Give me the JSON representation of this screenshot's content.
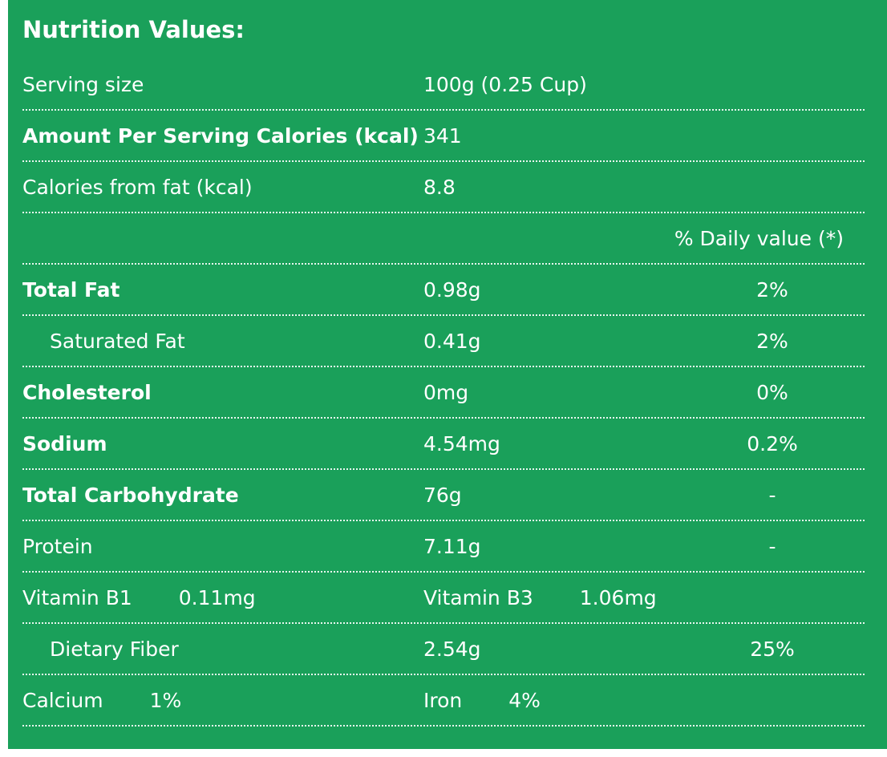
{
  "title": "Nutrition Values:",
  "colors": {
    "background": "#1aa05a",
    "text": "#ffffff",
    "divider": "#ffffff"
  },
  "serving": {
    "label": "Serving size",
    "value": "100g (0.25 Cup)"
  },
  "daily_value_header": "% Daily value (*)",
  "rows": [
    {
      "label": "Serving size",
      "value": "100g (0.25 Cup)",
      "percent": ""
    },
    {
      "label": "Amount Per Serving Calories (kcal)",
      "value": "341",
      "percent": ""
    },
    {
      "label": "Calories from fat (kcal)",
      "value": "8.8",
      "percent": ""
    },
    {
      "label": "Total Fat",
      "value": "0.98g",
      "percent": "2%"
    },
    {
      "label": "Saturated Fat",
      "value": "0.41g",
      "percent": "2%"
    },
    {
      "label": "Cholesterol",
      "value": "0mg",
      "percent": "0%"
    },
    {
      "label": "Sodium",
      "value": "4.54mg",
      "percent": "0.2%"
    },
    {
      "label": "Total Carbohydrate",
      "value": "76g",
      "percent": "-"
    },
    {
      "label": "Protein",
      "value": "7.11g",
      "percent": "-"
    },
    {
      "left_label": "Vitamin B1",
      "left_value": "0.11mg",
      "right_label": "Vitamin B3",
      "right_value": "1.06mg"
    },
    {
      "label": "Dietary Fiber",
      "value": "2.54g",
      "percent": "25%"
    },
    {
      "left_label": "Calcium",
      "left_value": "1%",
      "right_label": "Iron",
      "right_value": "4%"
    }
  ]
}
